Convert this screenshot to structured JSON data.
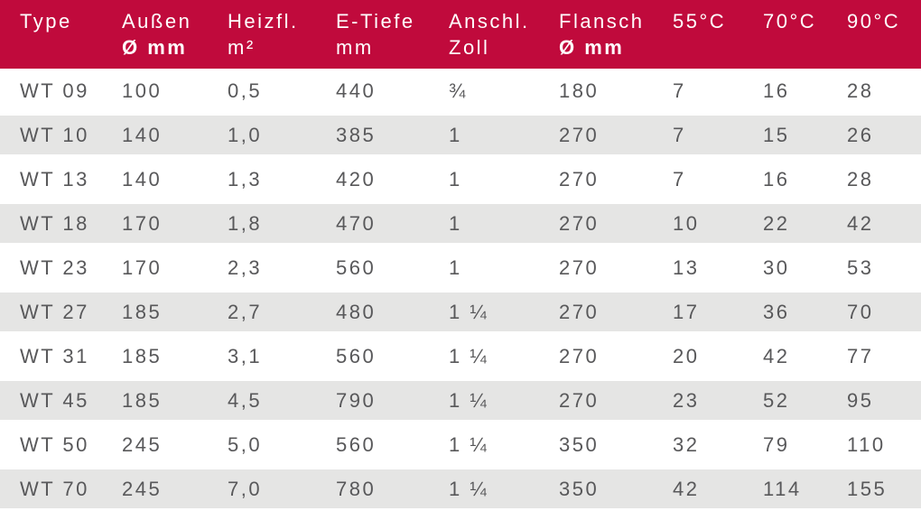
{
  "colors": {
    "header_bg": "#C00A3C",
    "header_text": "#FFFFFF",
    "alt_row_bg": "#E5E5E4",
    "body_text": "#58585A",
    "page_bg": "#FFFFFF"
  },
  "chart_data": {
    "type": "table",
    "title": "",
    "legend": [],
    "columns": [
      {
        "id": "type",
        "line1": "Type",
        "line2": "",
        "bold2": false
      },
      {
        "id": "aussen",
        "line1": "Außen",
        "line2": "Ø mm",
        "bold2": true
      },
      {
        "id": "heizfl",
        "line1": "Heizfl.",
        "line2": "m²",
        "bold2": false
      },
      {
        "id": "e-tiefe",
        "line1": "E-Tiefe",
        "line2": "mm",
        "bold2": false
      },
      {
        "id": "anschl",
        "line1": "Anschl.",
        "line2": "Zoll",
        "bold2": false
      },
      {
        "id": "flansch",
        "line1": "Flansch",
        "line2": "Ø mm",
        "bold2": true
      },
      {
        "id": "55c",
        "line1": "55°C",
        "line2": "",
        "bold2": false
      },
      {
        "id": "70c",
        "line1": "70°C",
        "line2": "",
        "bold2": false
      },
      {
        "id": "90c",
        "line1": "90°C",
        "line2": "",
        "bold2": false
      }
    ],
    "rows": [
      [
        "WT 09",
        "100",
        "0,5",
        "440",
        "¾",
        "180",
        "7",
        "16",
        "28"
      ],
      [
        "WT 10",
        "140",
        "1,0",
        "385",
        "1",
        "270",
        "7",
        "15",
        "26"
      ],
      [
        "WT 13",
        "140",
        "1,3",
        "420",
        "1",
        "270",
        "7",
        "16",
        "28"
      ],
      [
        "WT 18",
        "170",
        "1,8",
        "470",
        "1",
        "270",
        "10",
        "22",
        "42"
      ],
      [
        "WT 23",
        "170",
        "2,3",
        "560",
        "1",
        "270",
        "13",
        "30",
        "53"
      ],
      [
        "WT 27",
        "185",
        "2,7",
        "480",
        "1 ¼",
        "270",
        "17",
        "36",
        "70"
      ],
      [
        "WT 31",
        "185",
        "3,1",
        "560",
        "1 ¼",
        "270",
        "20",
        "42",
        "77"
      ],
      [
        "WT 45",
        "185",
        "4,5",
        "790",
        "1 ¼",
        "270",
        "23",
        "52",
        "95"
      ],
      [
        "WT 50",
        "245",
        "5,0",
        "560",
        "1 ¼",
        "350",
        "32",
        "79",
        "110"
      ],
      [
        "WT 70",
        "245",
        "7,0",
        "780",
        "1 ¼",
        "350",
        "42",
        "114",
        "155"
      ]
    ]
  }
}
